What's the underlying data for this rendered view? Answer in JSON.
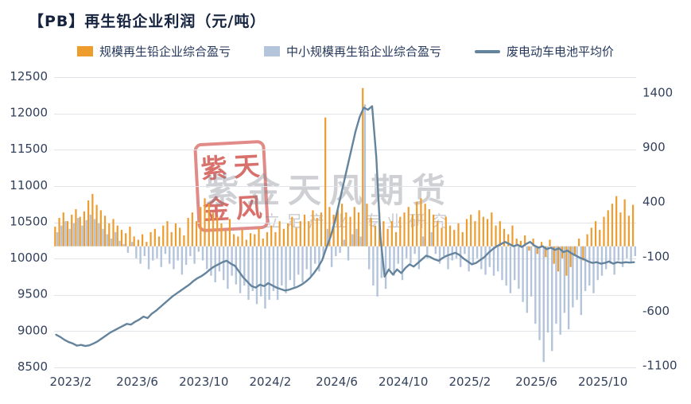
{
  "title": "【PB】再生铅企业利润（元/吨）",
  "legend": [
    {
      "label": "规模再生铅企业综合盈亏",
      "color": "#ED9C2D"
    },
    {
      "label": "中小规模再生铅企业综合盈亏",
      "color": "#B4C4DB"
    },
    {
      "label": "废电动车电池平均价",
      "color": "#64849E"
    }
  ],
  "watermark": {
    "seal_chars": [
      "紫",
      "天",
      "金",
      "风"
    ],
    "text": "紫金天风期货",
    "subtext": "立足产业 专业研究"
  },
  "chart_data": {
    "type": "bar+line combo, dual axis",
    "title": "【PB】再生铅企业利润（元/吨）",
    "x_start": "2023/1",
    "points_per_month": 4,
    "months_span": 35,
    "x_ticks": [
      {
        "label": "2023/2",
        "m": 1
      },
      {
        "label": "2023/6",
        "m": 5
      },
      {
        "label": "2023/10",
        "m": 9
      },
      {
        "label": "2024/2",
        "m": 13
      },
      {
        "label": "2024/6",
        "m": 17
      },
      {
        "label": "2024/10",
        "m": 21
      },
      {
        "label": "2025/2",
        "m": 25
      },
      {
        "label": "2025/6",
        "m": 29
      },
      {
        "label": "2025/10",
        "m": 33
      }
    ],
    "left_axis": {
      "min": 8500,
      "max": 12500,
      "ticks": [
        12500,
        12000,
        11500,
        11000,
        10500,
        10000,
        9500,
        9000,
        8500
      ]
    },
    "right_axis": {
      "min": -1110,
      "max": 1550,
      "ticks": [
        1400,
        900,
        400,
        -100,
        -600,
        -1100
      ]
    },
    "grid_color": "#E0E4E8",
    "label_color": "#33415C",
    "series": [
      {
        "name": "规模再生铅企业综合盈亏",
        "type": "bar",
        "axis": "right",
        "color": "#ED9C2D",
        "values": [
          180,
          260,
          310,
          230,
          290,
          340,
          270,
          320,
          420,
          480,
          380,
          330,
          280,
          210,
          250,
          190,
          150,
          120,
          180,
          90,
          60,
          110,
          40,
          130,
          160,
          90,
          190,
          230,
          130,
          210,
          170,
          100,
          260,
          310,
          230,
          360,
          440,
          390,
          310,
          270,
          210,
          150,
          250,
          110,
          90,
          150,
          60,
          120,
          110,
          170,
          70,
          130,
          190,
          130,
          230,
          160,
          210,
          270,
          170,
          230,
          290,
          230,
          330,
          260,
          310,
          1180,
          360,
          290,
          330,
          390,
          310,
          270,
          360,
          310,
          1450,
          390,
          260,
          190,
          310,
          230,
          160,
          230,
          130,
          270,
          310,
          360,
          290,
          410,
          440,
          390,
          340,
          290,
          230,
          170,
          270,
          190,
          150,
          210,
          130,
          250,
          290,
          230,
          330,
          270,
          250,
          310,
          190,
          230,
          160,
          110,
          190,
          70,
          50,
          100,
          -40,
          70,
          -70,
          40,
          -100,
          60,
          -160,
          -230,
          -110,
          -270,
          -190,
          -90,
          70,
          -130,
          110,
          170,
          230,
          150,
          270,
          330,
          390,
          460,
          310,
          430,
          280,
          380
        ]
      },
      {
        "name": "中小规模再生铅企业综合盈亏",
        "type": "bar",
        "axis": "right",
        "color": "#B4C4DB",
        "values": [
          130,
          190,
          230,
          160,
          210,
          260,
          190,
          240,
          290,
          250,
          210,
          160,
          110,
          70,
          130,
          50,
          20,
          -60,
          40,
          -110,
          -160,
          -90,
          -210,
          -130,
          -110,
          -190,
          -70,
          -160,
          -210,
          -130,
          -260,
          -170,
          -90,
          -160,
          -50,
          -130,
          -210,
          -270,
          -330,
          -230,
          -310,
          -390,
          -270,
          -350,
          -430,
          -360,
          -490,
          -410,
          -530,
          -460,
          -570,
          -490,
          -410,
          -490,
          -360,
          -430,
          -310,
          -370,
          -260,
          -330,
          -210,
          -270,
          -160,
          -230,
          -110,
          160,
          -190,
          -90,
          -60,
          60,
          -130,
          110,
          160,
          90,
          1300,
          -210,
          -360,
          -460,
          -290,
          -390,
          -210,
          -270,
          -160,
          -310,
          -110,
          -160,
          -70,
          -210,
          90,
          -110,
          130,
          -70,
          -160,
          -90,
          -210,
          -130,
          -110,
          -190,
          -70,
          -230,
          -160,
          -110,
          -210,
          -260,
          -190,
          -270,
          -230,
          -310,
          -360,
          -430,
          -310,
          -390,
          -510,
          -610,
          -460,
          -710,
          -860,
          -1060,
          -790,
          -960,
          -710,
          -810,
          -610,
          -760,
          -560,
          -490,
          -630,
          -410,
          -360,
          -430,
          -310,
          -270,
          -210,
          -160,
          -260,
          -130,
          -190,
          -110,
          -150,
          -90
        ]
      },
      {
        "name": "废电动车电池平均价",
        "type": "line",
        "axis": "left",
        "color": "#64849E",
        "values": [
          8950,
          8920,
          8880,
          8850,
          8830,
          8800,
          8810,
          8795,
          8805,
          8830,
          8860,
          8900,
          8940,
          8980,
          9010,
          9040,
          9070,
          9100,
          9090,
          9130,
          9160,
          9200,
          9180,
          9240,
          9280,
          9330,
          9380,
          9430,
          9480,
          9520,
          9560,
          9600,
          9640,
          9690,
          9730,
          9760,
          9800,
          9850,
          9890,
          9920,
          9950,
          9970,
          9930,
          9900,
          9820,
          9740,
          9680,
          9620,
          9600,
          9640,
          9620,
          9660,
          9630,
          9600,
          9580,
          9560,
          9570,
          9590,
          9610,
          9640,
          9680,
          9730,
          9800,
          9880,
          9980,
          10150,
          10300,
          10500,
          10750,
          11000,
          11250,
          11500,
          11750,
          11950,
          12080,
          12050,
          12100,
          11400,
          10300,
          9750,
          9850,
          9780,
          9850,
          9800,
          9870,
          9920,
          9890,
          9940,
          9990,
          10040,
          10020,
          9990,
          9970,
          10010,
          10040,
          10060,
          10080,
          10050,
          10000,
          9960,
          9920,
          9940,
          9980,
          10020,
          10080,
          10130,
          10170,
          10200,
          10230,
          10200,
          10170,
          10190,
          10160,
          10200,
          10230,
          10180,
          10150,
          10170,
          10130,
          10150,
          10120,
          10140,
          10090,
          10110,
          10070,
          10040,
          10010,
          9990,
          9960,
          9940,
          9950,
          9930,
          9940,
          9960,
          9930,
          9950,
          9940,
          9950,
          9945,
          9950
        ]
      }
    ]
  }
}
